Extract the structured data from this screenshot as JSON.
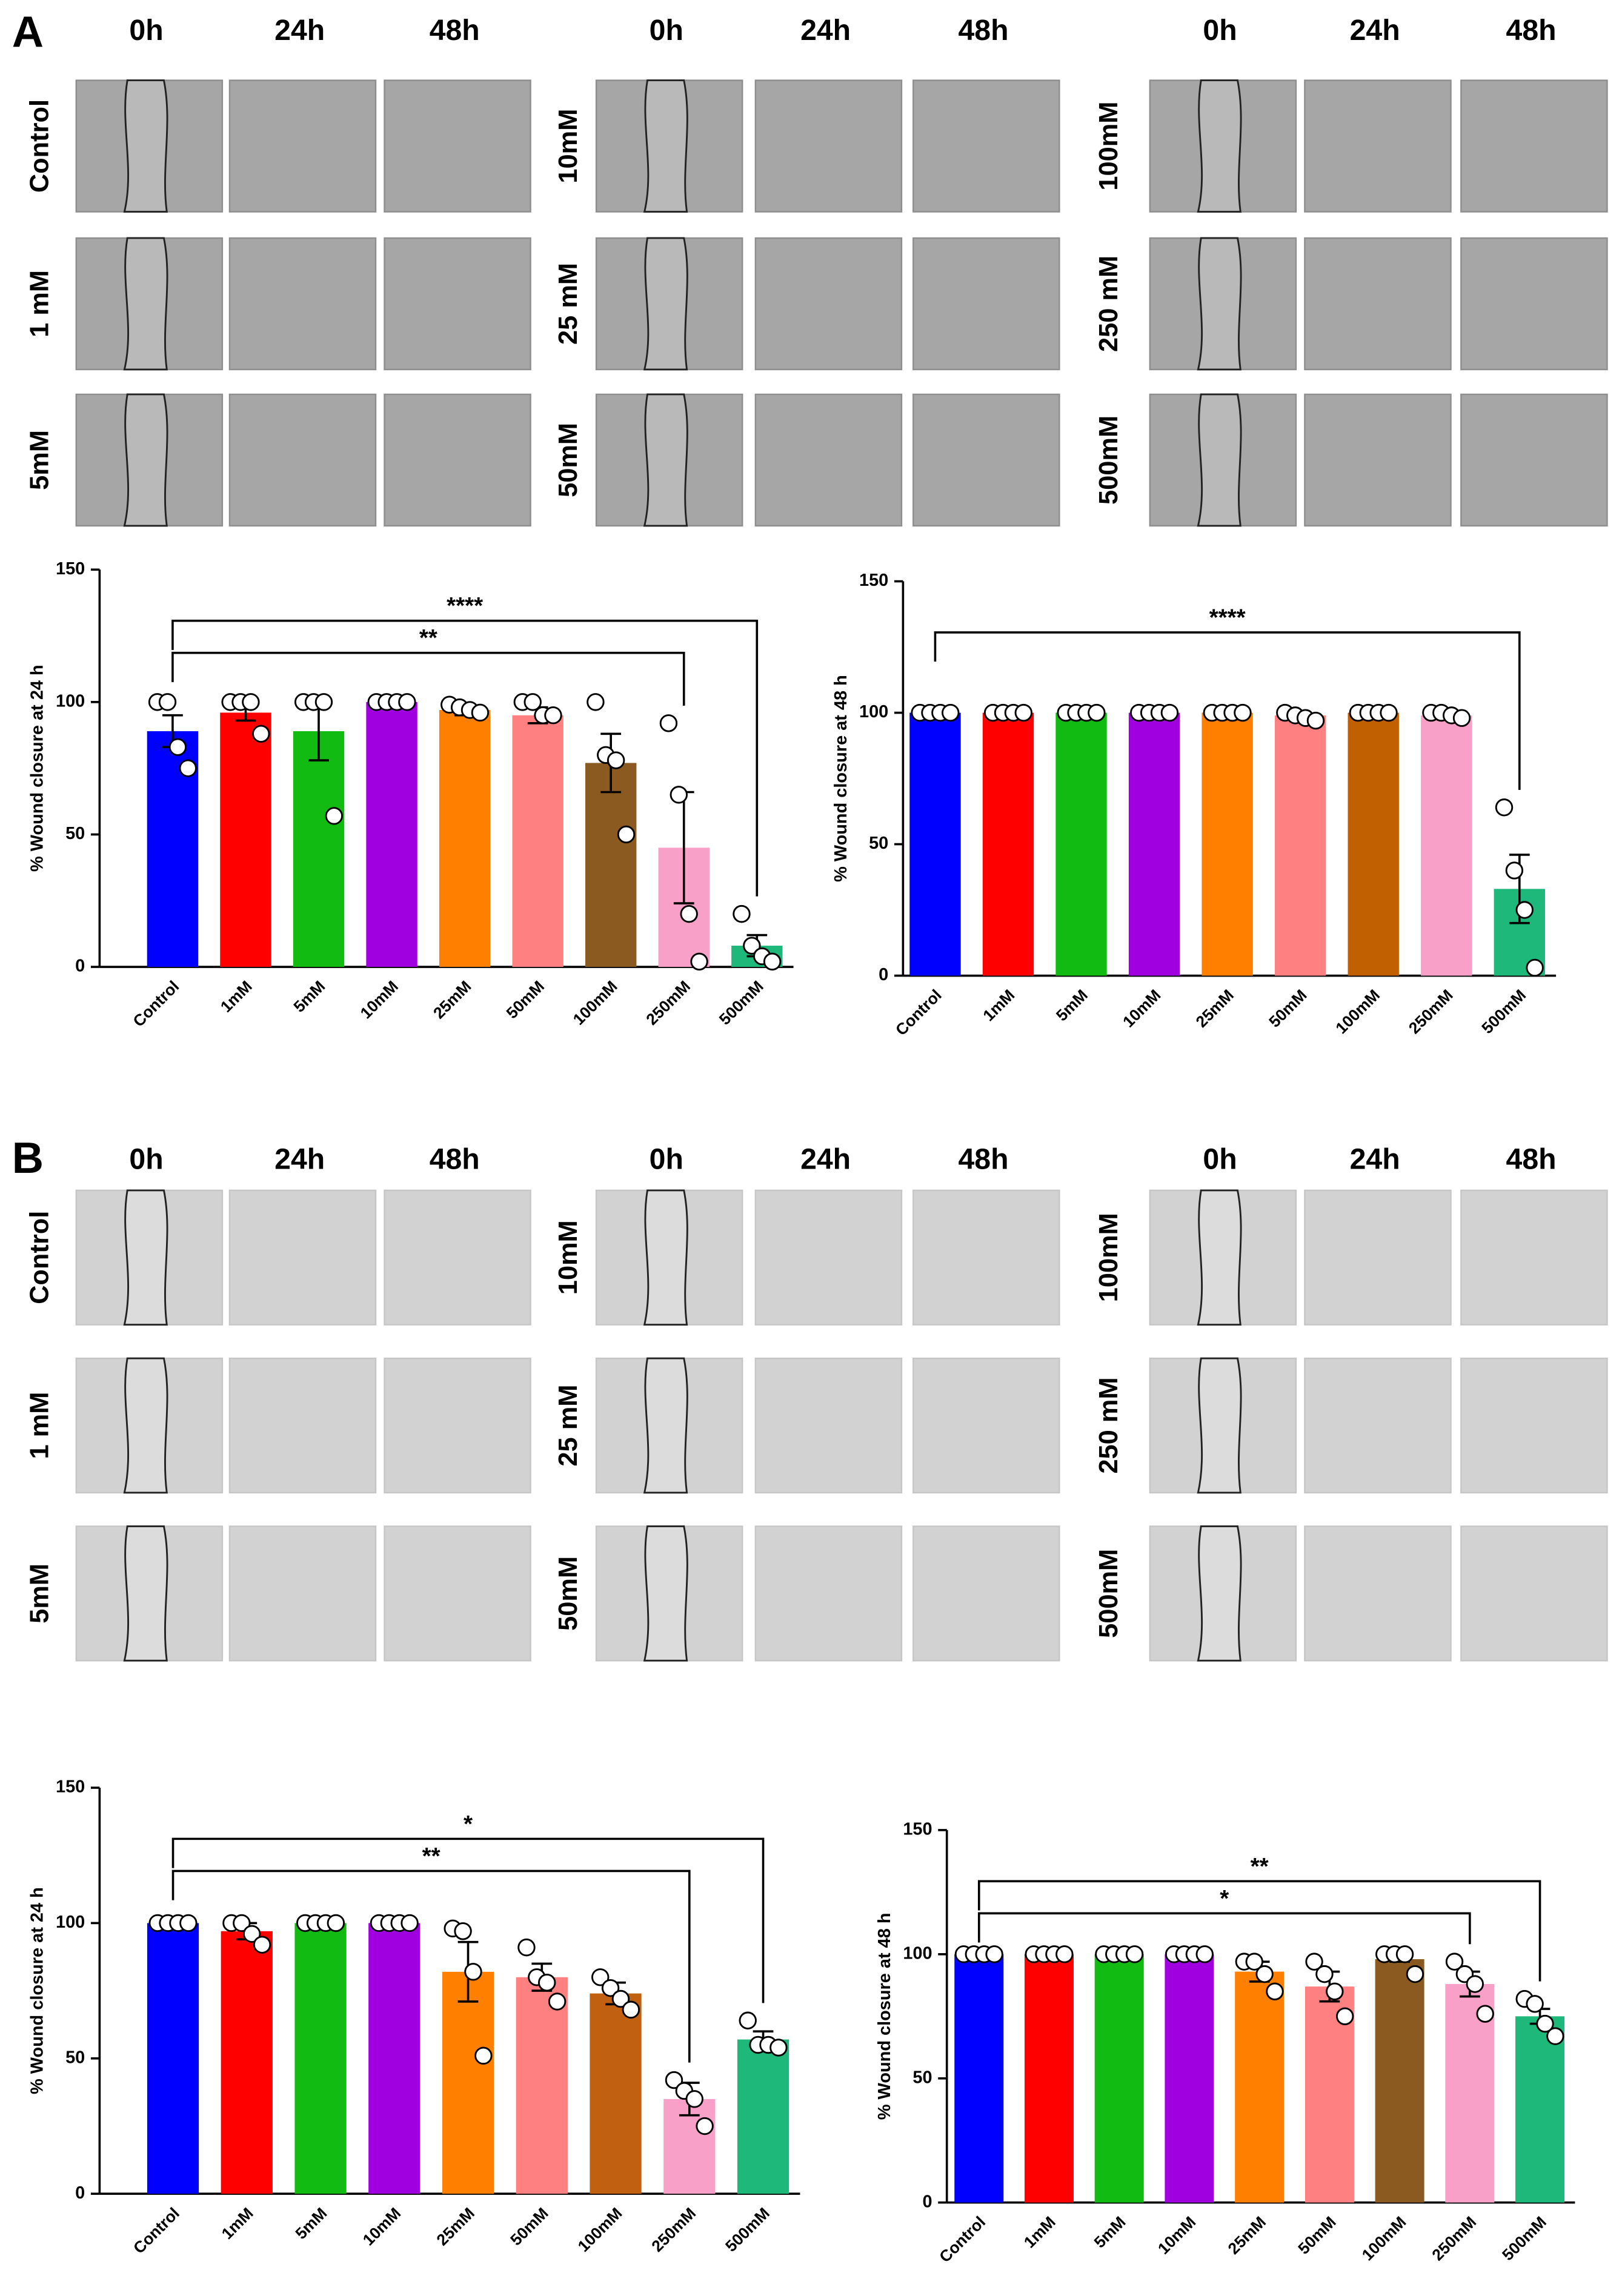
{
  "figure": {
    "panel_labels": [
      "A",
      "B"
    ],
    "time_labels": [
      "0h",
      "24h",
      "48h"
    ],
    "groups": [
      [
        "Control",
        "1 mM",
        "5mM"
      ],
      [
        "10mM",
        "25 mM",
        "50mM"
      ],
      [
        "100mM",
        "250 mM",
        "500mM"
      ]
    ]
  },
  "chart_data": [
    {
      "type": "bar",
      "ylabel": "% Wound closure at 24 h",
      "categories": [
        "Control",
        "1mM",
        "5mM",
        "10mM",
        "25mM",
        "50mM",
        "100mM",
        "250mM",
        "500mM"
      ],
      "values": [
        89,
        96,
        89,
        100,
        97,
        95,
        77,
        45,
        8
      ],
      "errors": [
        6,
        3,
        11,
        0,
        2,
        3,
        11,
        21,
        4
      ],
      "points": [
        [
          100,
          100,
          83,
          75
        ],
        [
          100,
          100,
          100,
          88
        ],
        [
          100,
          100,
          100,
          57
        ],
        [
          100,
          100,
          100,
          100
        ],
        [
          99,
          98,
          97,
          96
        ],
        [
          100,
          100,
          95,
          95
        ],
        [
          100,
          80,
          78,
          50
        ],
        [
          92,
          65,
          20,
          2
        ],
        [
          20,
          8,
          4,
          2
        ]
      ],
      "colors": [
        "#0000ff",
        "#ff0000",
        "#11bb11",
        "#a000e0",
        "#ff8000",
        "#ff8080",
        "#8b5a20",
        "#f9a0c8",
        "#1db87a"
      ],
      "ylim": [
        0,
        150
      ],
      "yticks": [
        0,
        50,
        100,
        150
      ],
      "annotations": [
        {
          "label": "**",
          "between": [
            0,
            7
          ]
        },
        {
          "label": "****",
          "between": [
            0,
            8
          ]
        }
      ]
    },
    {
      "type": "bar",
      "ylabel": "% Wound closure at 48 h",
      "categories": [
        "Control",
        "1mM",
        "5mM",
        "10mM",
        "25mM",
        "50mM",
        "100mM",
        "250mM",
        "500mM"
      ],
      "values": [
        100,
        100,
        100,
        100,
        100,
        99,
        100,
        99,
        33
      ],
      "errors": [
        0,
        0,
        0,
        0,
        0,
        1,
        0,
        1,
        13
      ],
      "points": [
        [
          100,
          100,
          100,
          100
        ],
        [
          100,
          100,
          100,
          100
        ],
        [
          100,
          100,
          100,
          100
        ],
        [
          100,
          100,
          100,
          100
        ],
        [
          100,
          100,
          100,
          100
        ],
        [
          100,
          99,
          98,
          97
        ],
        [
          100,
          100,
          100,
          100
        ],
        [
          100,
          100,
          99,
          98
        ],
        [
          64,
          40,
          25,
          3
        ]
      ],
      "colors": [
        "#0000ff",
        "#ff0000",
        "#11bb11",
        "#a000e0",
        "#ff8000",
        "#ff8080",
        "#c06000",
        "#f9a0c8",
        "#1db87a"
      ],
      "ylim": [
        0,
        150
      ],
      "yticks": [
        0,
        50,
        100,
        150
      ],
      "annotations": [
        {
          "label": "****",
          "between": [
            0,
            8
          ]
        }
      ]
    },
    {
      "type": "bar",
      "ylabel": "% Wound closure at 24 h",
      "categories": [
        "Control",
        "1mM",
        "5mM",
        "10mM",
        "25mM",
        "50mM",
        "100mM",
        "250mM",
        "500mM"
      ],
      "values": [
        100,
        97,
        100,
        100,
        82,
        80,
        74,
        35,
        57
      ],
      "errors": [
        0,
        3,
        0,
        0,
        11,
        5,
        4,
        6,
        3
      ],
      "points": [
        [
          100,
          100,
          100,
          100
        ],
        [
          100,
          100,
          96,
          92
        ],
        [
          100,
          100,
          100,
          100
        ],
        [
          100,
          100,
          100,
          100
        ],
        [
          98,
          97,
          82,
          51
        ],
        [
          91,
          80,
          78,
          71
        ],
        [
          80,
          76,
          72,
          68
        ],
        [
          42,
          38,
          35,
          25
        ],
        [
          64,
          55,
          55,
          54
        ]
      ],
      "colors": [
        "#0000ff",
        "#ff0000",
        "#11bb11",
        "#a000e0",
        "#ff8000",
        "#ff8080",
        "#c06010",
        "#f9a0c8",
        "#1db87a"
      ],
      "ylim": [
        0,
        150
      ],
      "yticks": [
        0,
        50,
        100,
        150
      ],
      "annotations": [
        {
          "label": "**",
          "between": [
            0,
            7
          ]
        },
        {
          "label": "*",
          "between": [
            0,
            8
          ]
        }
      ]
    },
    {
      "type": "bar",
      "ylabel": "% Wound closure at 48 h",
      "categories": [
        "Control",
        "1mM",
        "5mM",
        "10mM",
        "25mM",
        "50mM",
        "100mM",
        "250mM",
        "500mM"
      ],
      "values": [
        100,
        100,
        100,
        100,
        93,
        87,
        98,
        88,
        75
      ],
      "errors": [
        0,
        0,
        0,
        0,
        4,
        6,
        1,
        5,
        3
      ],
      "points": [
        [
          100,
          100,
          100,
          100
        ],
        [
          100,
          100,
          100,
          100
        ],
        [
          100,
          100,
          100,
          100
        ],
        [
          100,
          100,
          100,
          100
        ],
        [
          97,
          97,
          92,
          85
        ],
        [
          97,
          92,
          85,
          75
        ],
        [
          100,
          100,
          100,
          92
        ],
        [
          97,
          92,
          88,
          76
        ],
        [
          82,
          80,
          72,
          67
        ]
      ],
      "colors": [
        "#0000ff",
        "#ff0000",
        "#11bb11",
        "#a000e0",
        "#ff8000",
        "#ff8080",
        "#8b5a20",
        "#f9a0c8",
        "#1db87a"
      ],
      "ylim": [
        0,
        150
      ],
      "yticks": [
        0,
        50,
        100,
        150
      ],
      "annotations": [
        {
          "label": "*",
          "between": [
            0,
            7
          ]
        },
        {
          "label": "**",
          "between": [
            0,
            8
          ]
        }
      ]
    }
  ]
}
